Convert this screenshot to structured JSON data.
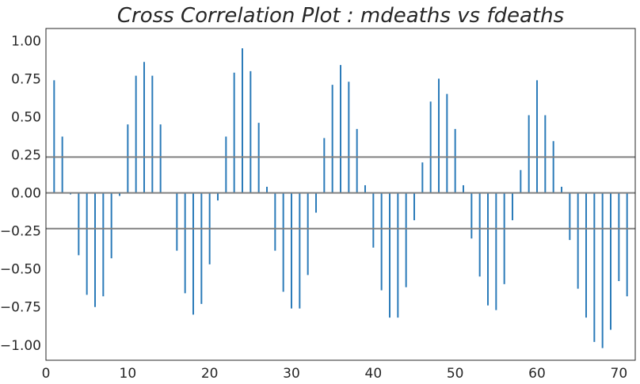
{
  "chart_data": {
    "type": "bar",
    "title": "Cross Correlation Plot :  mdeaths vs fdeaths",
    "xlabel": "",
    "ylabel": "",
    "xlim": [
      0,
      72
    ],
    "ylim": [
      -1.1,
      1.08
    ],
    "xticks": [
      0,
      10,
      20,
      30,
      40,
      50,
      60,
      70
    ],
    "xtick_labels": [
      "0",
      "10",
      "20",
      "30",
      "40",
      "50",
      "60",
      "70"
    ],
    "yticks": [
      1.0,
      0.75,
      0.5,
      0.25,
      0.0,
      -0.25,
      -0.5,
      -0.75,
      -1.0
    ],
    "ytick_labels": [
      "1.00",
      "0.75",
      "0.50",
      "0.25",
      "0.00",
      "−0.25",
      "−0.50",
      "−0.75",
      "−1.00"
    ],
    "confidence_band": [
      0.235,
      -0.235
    ],
    "lags": [
      1,
      2,
      3,
      4,
      5,
      6,
      7,
      8,
      9,
      10,
      11,
      12,
      13,
      14,
      15,
      16,
      17,
      18,
      19,
      20,
      21,
      22,
      23,
      24,
      25,
      26,
      27,
      28,
      29,
      30,
      31,
      32,
      33,
      34,
      35,
      36,
      37,
      38,
      39,
      40,
      41,
      42,
      43,
      44,
      45,
      46,
      47,
      48,
      49,
      50,
      51,
      52,
      53,
      54,
      55,
      56,
      57,
      58,
      59,
      60,
      61,
      62,
      63,
      64,
      65,
      66,
      67,
      68,
      69,
      70,
      71
    ],
    "values": [
      0.74,
      0.37,
      -0.01,
      -0.41,
      -0.67,
      -0.75,
      -0.68,
      -0.43,
      -0.02,
      0.45,
      0.77,
      0.86,
      0.77,
      0.45,
      0.0,
      -0.38,
      -0.66,
      -0.8,
      -0.73,
      -0.47,
      -0.05,
      0.37,
      0.79,
      0.95,
      0.8,
      0.46,
      0.04,
      -0.38,
      -0.65,
      -0.76,
      -0.76,
      -0.54,
      -0.13,
      0.36,
      0.71,
      0.84,
      0.73,
      0.42,
      0.05,
      -0.36,
      -0.64,
      -0.82,
      -0.82,
      -0.62,
      -0.18,
      0.2,
      0.6,
      0.75,
      0.65,
      0.42,
      0.05,
      -0.3,
      -0.55,
      -0.74,
      -0.77,
      -0.6,
      -0.18,
      0.15,
      0.51,
      0.74,
      0.51,
      0.34,
      0.04,
      -0.31,
      -0.63,
      -0.82,
      -0.98,
      -1.02,
      -0.9,
      -0.58,
      -0.68
    ],
    "colors": {
      "bars": "#2b7bb9",
      "band": "#808080",
      "axis": "#262626"
    }
  }
}
